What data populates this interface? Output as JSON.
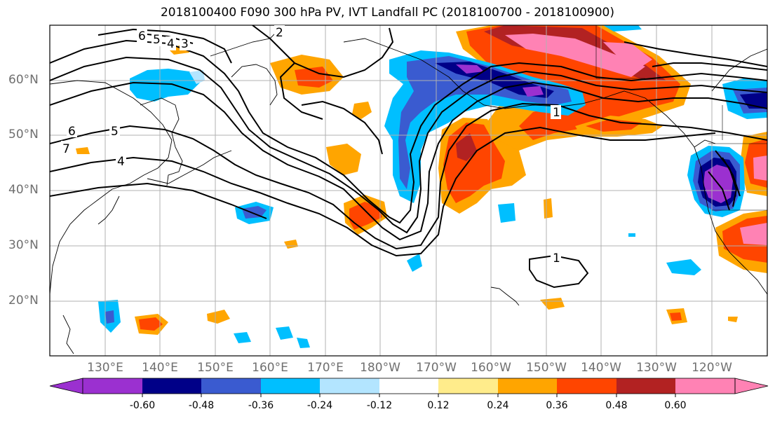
{
  "title": "2018100400 F090 300 hPa PV, IVT Landfall PC (2018100700 - 2018100900)",
  "lat_labels": [
    "60°N",
    "50°N",
    "40°N",
    "30°N",
    "20°N"
  ],
  "lon_labels": [
    "130°E",
    "140°E",
    "150°E",
    "160°E",
    "170°E",
    "180°W",
    "170°W",
    "160°W",
    "150°W",
    "140°W",
    "130°W",
    "120°W"
  ],
  "contour_labels": [
    "6",
    "5",
    "4",
    "3",
    "2",
    "1",
    "6",
    "5",
    "7",
    "4",
    "1"
  ],
  "colorbar": {
    "tick_labels": [
      "-0.60",
      "-0.48",
      "-0.36",
      "-0.24",
      "-0.12",
      "0.12",
      "0.24",
      "0.36",
      "0.48",
      "0.60"
    ],
    "colors": [
      "#9b30d0",
      "#000088",
      "#3a5bd0",
      "#00bfff",
      "#b3e5ff",
      "#ffffff",
      "#ffec8b",
      "#ffa500",
      "#ff4500",
      "#b22222",
      "#ff82b4"
    ]
  },
  "palette": {
    "purple": "#9b30d0",
    "navy": "#000088",
    "blue": "#3a5bd0",
    "cyan": "#00bfff",
    "lightblue": "#b3e5ff",
    "yellow": "#ffec8b",
    "orange": "#ffa500",
    "redorange": "#ff4500",
    "darkred": "#b22222",
    "pink": "#ff82b4"
  }
}
